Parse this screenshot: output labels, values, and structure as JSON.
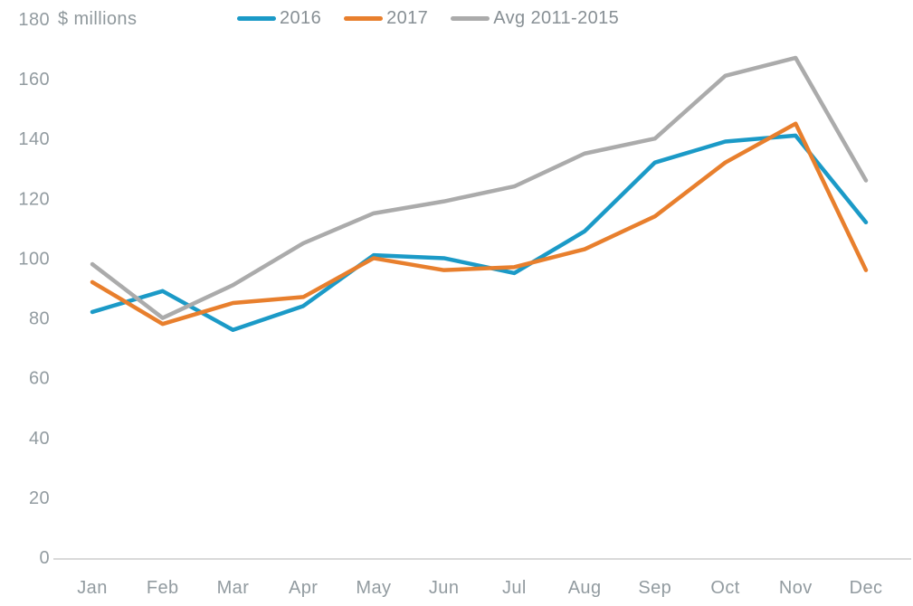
{
  "chart_data": {
    "type": "line",
    "title": "",
    "ylabel": "$ millions",
    "categories": [
      "Jan",
      "Feb",
      "Mar",
      "Apr",
      "May",
      "Jun",
      "Jul",
      "Aug",
      "Sep",
      "Oct",
      "Nov",
      "Dec"
    ],
    "series": [
      {
        "name": "2016",
        "color": "#1B9AC7",
        "values": [
          82,
          89,
          76,
          84,
          101,
          100,
          95,
          109,
          132,
          139,
          141,
          112
        ]
      },
      {
        "name": "2017",
        "color": "#E87F2D",
        "values": [
          92,
          78,
          85,
          87,
          100,
          96,
          97,
          103,
          114,
          132,
          145,
          96
        ]
      },
      {
        "name": "Avg 2011-2015",
        "color": "#ABABAB",
        "values": [
          98,
          80,
          91,
          105,
          115,
          119,
          124,
          135,
          140,
          161,
          167,
          126
        ]
      }
    ],
    "y_axis": {
      "min": 0,
      "max": 180,
      "step": 20
    },
    "legend_position": "top",
    "grid": false,
    "axis_line_color": "#D9D9D9",
    "text_color": "#8F989C"
  }
}
